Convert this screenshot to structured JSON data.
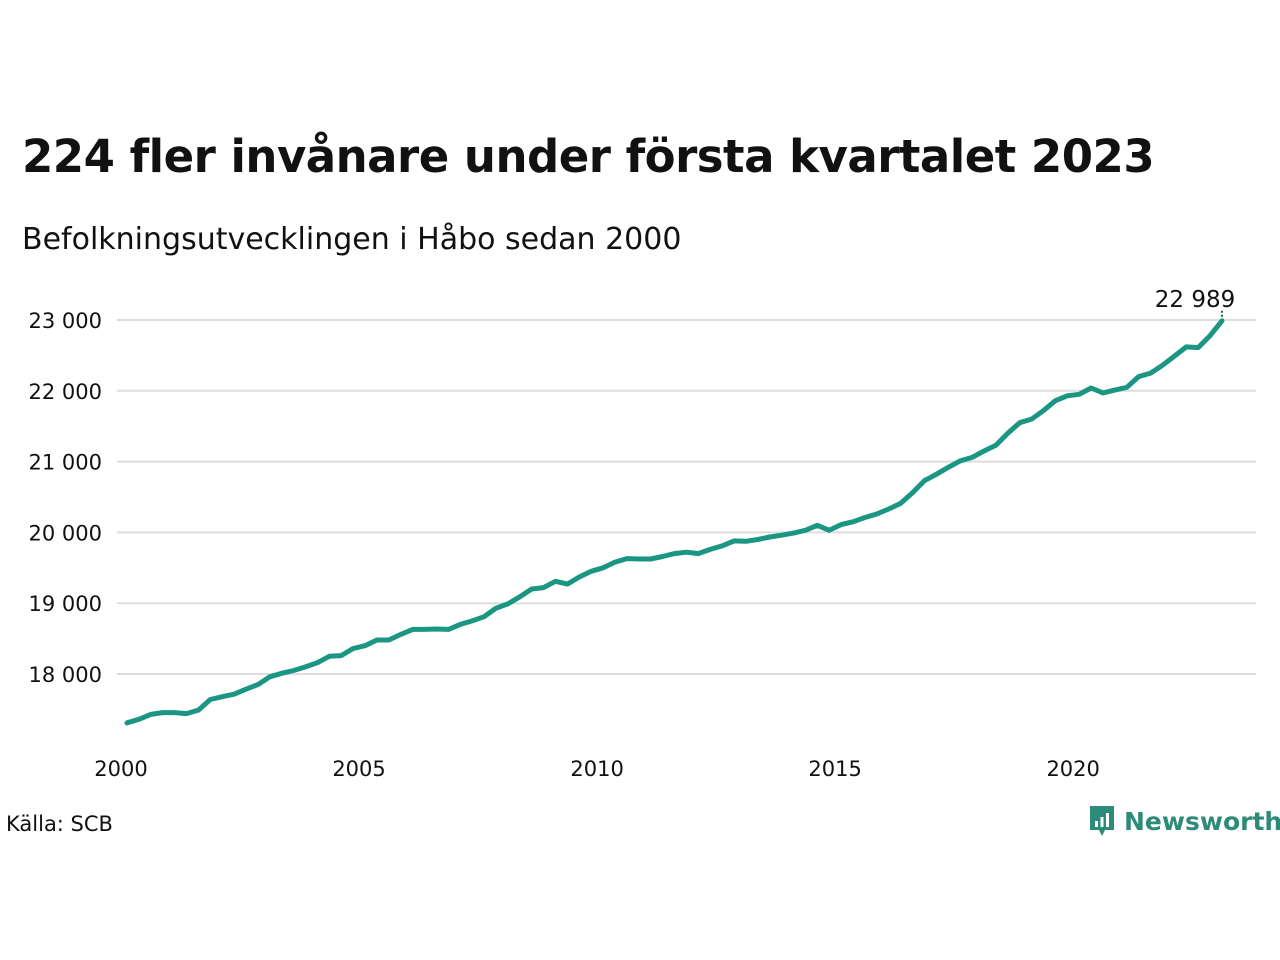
{
  "header": {
    "title": "224 fler invånare under första kvartalet 2023",
    "subtitle": "Befolkningsutvecklingen i Håbo sedan 2000"
  },
  "footer": {
    "source": "Källa: SCB",
    "brand": "Newsworthy"
  },
  "colors": {
    "line": "#1a9682",
    "grid": "#dddddd",
    "text": "#111111",
    "brand": "#2e8b7a"
  },
  "icons": {
    "brand_logo": "newsworthy-logo-icon"
  },
  "chart_data": {
    "type": "line",
    "title": "224 fler invånare under första kvartalet 2023",
    "subtitle": "Befolkningsutvecklingen i Håbo sedan 2000",
    "xlabel": "",
    "ylabel": "",
    "grid": true,
    "xlim": [
      2000.0,
      2024.0
    ],
    "ylim": [
      17000,
      23300
    ],
    "x_ticks": [
      2000,
      2005,
      2010,
      2015,
      2020
    ],
    "x_tick_labels": [
      "2000",
      "2005",
      "2010",
      "2015",
      "2020"
    ],
    "y_ticks": [
      18000,
      19000,
      20000,
      21000,
      22000,
      23000
    ],
    "y_tick_labels": [
      "18 000",
      "19 000",
      "20 000",
      "21 000",
      "22 000",
      "23 000"
    ],
    "annotation": {
      "x": 2023.0,
      "y": 22989,
      "label": "22 989"
    },
    "series": [
      {
        "x": [
          2000.0,
          2000.25,
          2000.5,
          2000.75,
          2001.0,
          2001.25,
          2001.5,
          2001.75,
          2002.0,
          2002.25,
          2002.5,
          2002.75,
          2003.0,
          2003.25,
          2003.5,
          2003.75,
          2004.0,
          2004.25,
          2004.5,
          2004.75,
          2005.0,
          2005.25,
          2005.5,
          2005.75,
          2006.0,
          2006.25,
          2006.5,
          2006.75,
          2007.0,
          2007.25,
          2007.5,
          2007.75,
          2008.0,
          2008.25,
          2008.5,
          2008.75,
          2009.0,
          2009.25,
          2009.5,
          2009.75,
          2010.0,
          2010.25,
          2010.5,
          2010.75,
          2011.0,
          2011.25,
          2011.5,
          2011.75,
          2012.0,
          2012.25,
          2012.5,
          2012.75,
          2013.0,
          2013.25,
          2013.5,
          2013.75,
          2014.0,
          2014.25,
          2014.5,
          2014.75,
          2015.0,
          2015.25,
          2015.5,
          2015.75,
          2016.0,
          2016.25,
          2016.5,
          2016.75,
          2017.0,
          2017.25,
          2017.5,
          2017.75,
          2018.0,
          2018.25,
          2018.5,
          2018.75,
          2019.0,
          2019.25,
          2019.5,
          2019.75,
          2020.0,
          2020.25,
          2020.5,
          2020.75,
          2021.0,
          2021.25,
          2021.5,
          2021.75,
          2022.0,
          2022.25,
          2022.5,
          2022.75,
          2023.0
        ],
        "values": [
          17310,
          17360,
          17430,
          17455,
          17455,
          17440,
          17490,
          17640,
          17680,
          17715,
          17785,
          17850,
          17960,
          18010,
          18050,
          18100,
          18160,
          18250,
          18260,
          18360,
          18400,
          18480,
          18480,
          18560,
          18630,
          18630,
          18635,
          18630,
          18700,
          18750,
          18810,
          18930,
          18990,
          19090,
          19200,
          19220,
          19310,
          19270,
          19370,
          19450,
          19500,
          19580,
          19630,
          19625,
          19625,
          19660,
          19700,
          19720,
          19700,
          19760,
          19810,
          19880,
          19875,
          19900,
          19935,
          19960,
          19990,
          20030,
          20100,
          20030,
          20110,
          20150,
          20210,
          20260,
          20330,
          20410,
          20560,
          20730,
          20820,
          20920,
          21010,
          21060,
          21150,
          21230,
          21400,
          21550,
          21600,
          21720,
          21860,
          21930,
          21950,
          22040,
          21970,
          22010,
          22050,
          22200,
          22250,
          22360,
          22490,
          22620,
          22610,
          22780,
          22989
        ]
      }
    ]
  }
}
